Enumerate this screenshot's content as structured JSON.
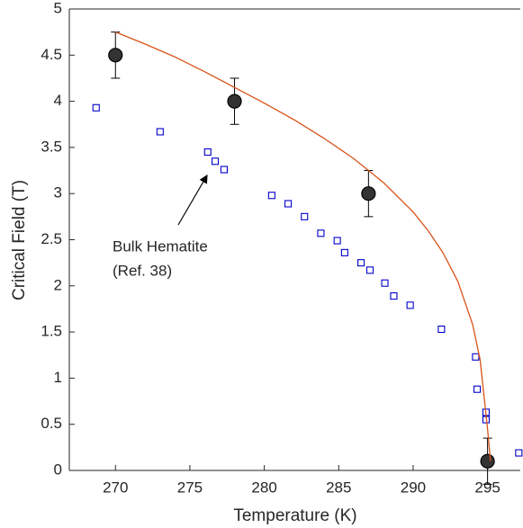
{
  "chart_data": {
    "type": "scatter",
    "xlabel": "Temperature (K)",
    "ylabel": "Critical Field (T)",
    "xlim": [
      266.9,
      297.2
    ],
    "ylim": [
      0,
      5
    ],
    "xticks": [
      270,
      275,
      280,
      285,
      290,
      295
    ],
    "yticks": [
      0,
      0.5,
      1,
      1.5,
      2,
      2.5,
      3,
      3.5,
      4,
      4.5,
      5
    ],
    "grid": false,
    "annotation": {
      "lines": [
        "Bulk Hematite",
        "(Ref. 38)"
      ]
    },
    "series": [
      {
        "type": "errorbar",
        "color": "#000000",
        "x": [
          270,
          278,
          287,
          295
        ],
        "values": [
          4.5,
          4.0,
          3.0,
          0.1
        ],
        "errors": [
          0.25,
          0.25,
          0.25,
          0.25
        ]
      },
      {
        "type": "square",
        "color": "#0000cc",
        "x": [
          268.7,
          273.0,
          276.2,
          276.7,
          277.3,
          280.5,
          281.6,
          282.7,
          283.8,
          284.9,
          285.4,
          286.5,
          287.1,
          288.1,
          288.7,
          289.8,
          291.9,
          294.2,
          294.3,
          294.9,
          294.9,
          297.1
        ],
        "values": [
          3.93,
          3.67,
          3.45,
          3.35,
          3.26,
          2.98,
          2.89,
          2.75,
          2.57,
          2.49,
          2.36,
          2.25,
          2.17,
          2.03,
          1.89,
          1.79,
          1.53,
          1.23,
          0.88,
          0.63,
          0.55,
          0.19
        ]
      },
      {
        "type": "line",
        "color": "#d95319",
        "x": [
          270,
          272,
          274,
          276,
          278,
          280,
          282,
          284,
          286,
          288,
          290,
          291,
          292,
          293,
          294,
          294.5,
          295,
          295.2
        ],
        "values": [
          4.75,
          4.62,
          4.48,
          4.32,
          4.15,
          3.98,
          3.8,
          3.6,
          3.38,
          3.12,
          2.8,
          2.6,
          2.36,
          2.05,
          1.58,
          1.2,
          0.45,
          0.1
        ]
      }
    ]
  }
}
